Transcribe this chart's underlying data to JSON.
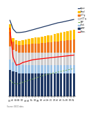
{
  "years": [
    2000,
    2001,
    2002,
    2003,
    2004,
    2005,
    2006,
    2007,
    2008,
    2009,
    2010,
    2011,
    2012,
    2013,
    2014,
    2015,
    2016,
    2017,
    2018,
    2019,
    2020
  ],
  "bar_segments": {
    "dark_navy": [
      1.5,
      1.4,
      1.35,
      1.3,
      1.3,
      1.3,
      1.3,
      1.3,
      1.3,
      1.28,
      1.28,
      1.28,
      1.28,
      1.28,
      1.28,
      1.28,
      1.28,
      1.28,
      1.28,
      1.28,
      1.28
    ],
    "light_blue": [
      0.55,
      0.5,
      0.48,
      0.47,
      0.47,
      0.47,
      0.47,
      0.47,
      0.47,
      0.47,
      0.47,
      0.47,
      0.47,
      0.47,
      0.47,
      0.47,
      0.47,
      0.47,
      0.47,
      0.47,
      0.47
    ],
    "gray": [
      0.75,
      0.72,
      0.7,
      0.7,
      0.7,
      0.7,
      0.7,
      0.7,
      0.7,
      0.7,
      0.7,
      0.7,
      0.7,
      0.7,
      0.7,
      0.7,
      0.7,
      0.7,
      0.7,
      0.7,
      0.7
    ],
    "orange": [
      0.85,
      0.45,
      0.42,
      0.43,
      0.44,
      0.46,
      0.48,
      0.5,
      0.52,
      0.53,
      0.55,
      0.57,
      0.59,
      0.61,
      0.63,
      0.65,
      0.67,
      0.69,
      0.71,
      0.73,
      0.75
    ],
    "yellow": [
      0.42,
      0.22,
      0.2,
      0.22,
      0.24,
      0.26,
      0.28,
      0.3,
      0.32,
      0.34,
      0.36,
      0.38,
      0.39,
      0.4,
      0.42,
      0.44,
      0.46,
      0.48,
      0.5,
      0.52,
      0.54
    ]
  },
  "lines": {
    "dark_blue_line": [
      4.3,
      3.8,
      3.6,
      3.6,
      3.62,
      3.65,
      3.7,
      3.75,
      3.8,
      3.85,
      3.9,
      3.95,
      4.0,
      4.05,
      4.1,
      4.15,
      4.18,
      4.22,
      4.26,
      4.3,
      4.34
    ],
    "red_line": [
      3.85,
      2.2,
      1.75,
      1.8,
      1.9,
      1.95,
      2.0,
      2.05,
      2.08,
      2.1,
      2.12,
      2.14,
      2.16,
      2.18,
      2.2,
      2.22,
      2.24,
      2.26,
      2.28,
      2.3,
      2.32
    ],
    "green_line": [
      0.9,
      0.75,
      0.68,
      0.72,
      0.78,
      0.84,
      0.9,
      0.96,
      1.02,
      1.08,
      1.14,
      1.2,
      1.24,
      1.28,
      1.32,
      1.36,
      1.4,
      1.44,
      1.48,
      1.52,
      1.56
    ]
  },
  "colors": {
    "dark_navy": "#1f3864",
    "light_blue": "#9dc3e6",
    "gray": "#d0cece",
    "orange": "#f07820",
    "yellow": "#ffc000",
    "dark_blue_line": "#1f3864",
    "red_line": "#ff0000",
    "green_line": "#70ad47"
  },
  "bar_width": 0.75,
  "ylim": [
    0,
    5.0
  ],
  "background_color": "#ffffff",
  "source_text": "Source: OECD data."
}
